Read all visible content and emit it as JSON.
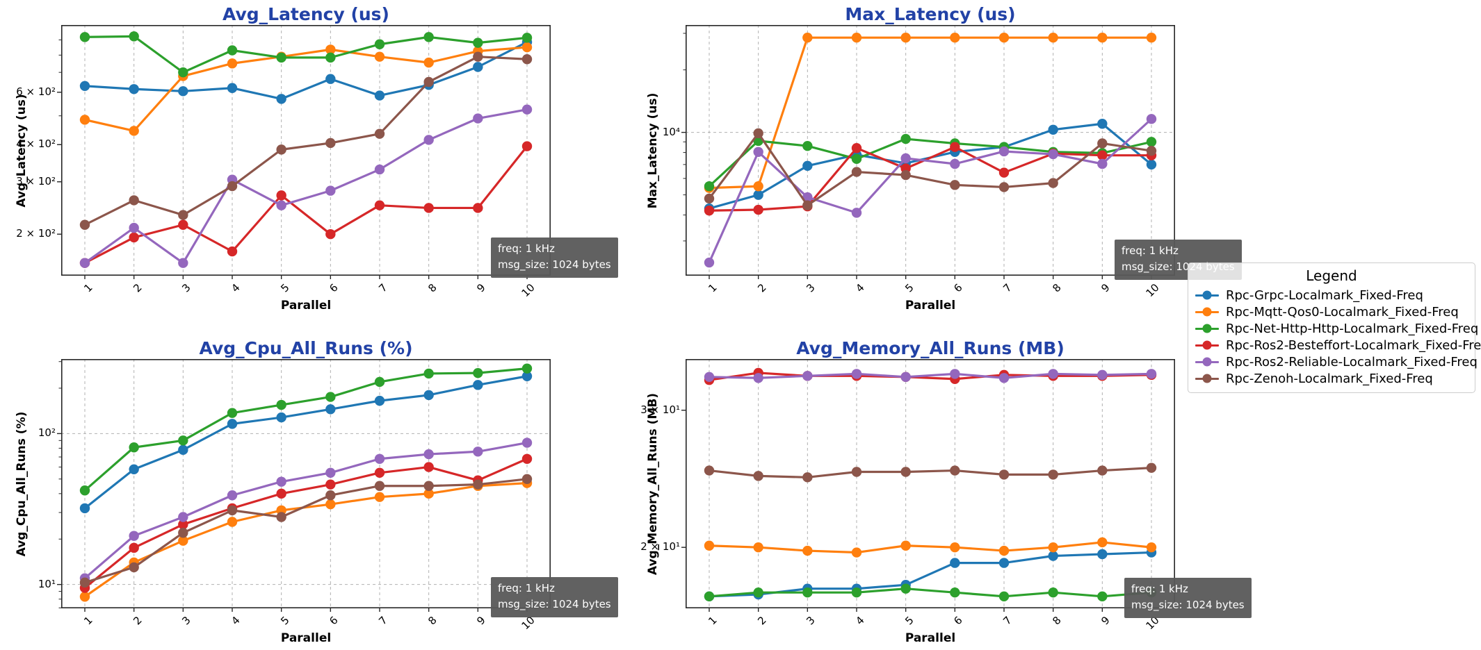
{
  "style": {
    "title_color": "#2242a6",
    "annotation_bg": "#595959",
    "annotation_fg": "#ffffff",
    "grid_color": "#b0b0b0",
    "spine_color": "#262626",
    "background": "#ffffff"
  },
  "annotation": {
    "line1": "freq: 1 kHz",
    "line2": "msg_size: 1024 bytes"
  },
  "legend": {
    "title": "Legend",
    "entries": [
      {
        "label": "Rpc-Grpc-Localmark_Fixed-Freq",
        "color": "#1f77b4"
      },
      {
        "label": "Rpc-Mqtt-Qos0-Localmark_Fixed-Freq",
        "color": "#ff7f0e"
      },
      {
        "label": "Rpc-Net-Http-Http-Localmark_Fixed-Freq",
        "color": "#2ca02c"
      },
      {
        "label": "Rpc-Ros2-Besteffort-Localmark_Fixed-Freq",
        "color": "#d62728"
      },
      {
        "label": "Rpc-Ros2-Reliable-Localmark_Fixed-Freq",
        "color": "#9467bd"
      },
      {
        "label": "Rpc-Zenoh-Localmark_Fixed-Freq",
        "color": "#8c564b"
      }
    ]
  },
  "chart_data": {
    "type": "line",
    "xlabel": "Parallel",
    "x": [
      1,
      2,
      3,
      4,
      5,
      6,
      7,
      8,
      9,
      10
    ],
    "xticklabels": [
      "1",
      "2",
      "3",
      "4",
      "5",
      "6",
      "7",
      "8",
      "9",
      "10"
    ],
    "legend_position": "right",
    "grid": "major-dashed",
    "charts": [
      {
        "title": "Avg_Latency (us)",
        "ylabel": "Avg_Latency (us)",
        "yscale": "log",
        "ylim": [
          145,
          1010
        ],
        "yticks": [
          {
            "value": 600,
            "label": "6 × 10²",
            "grid": false
          },
          {
            "value": 400,
            "label": "4 × 10²",
            "grid": false
          },
          {
            "value": 300,
            "label": "3 × 10²",
            "grid": false
          },
          {
            "value": 200,
            "label": "2 × 10²",
            "grid": false
          }
        ],
        "series": [
          {
            "name": "Rpc-Grpc-Localmark_Fixed-Freq",
            "values": [
              630,
              615,
              605,
              620,
              570,
              665,
              585,
              635,
              730,
              885
            ]
          },
          {
            "name": "Rpc-Mqtt-Qos0-Localmark_Fixed-Freq",
            "values": [
              485,
              445,
              680,
              750,
              790,
              835,
              790,
              755,
              825,
              850
            ]
          },
          {
            "name": "Rpc-Net-Http-Http-Localmark_Fixed-Freq",
            "values": [
              920,
              925,
              700,
              830,
              785,
              785,
              870,
              920,
              880,
              915
            ]
          },
          {
            "name": "Rpc-Ros2-Besteffort-Localmark_Fixed-Freq",
            "values": [
              160,
              195,
              215,
              175,
              270,
              200,
              250,
              245,
              245,
              395
            ]
          },
          {
            "name": "Rpc-Ros2-Reliable-Localmark_Fixed-Freq",
            "values": [
              160,
              210,
              160,
              305,
              250,
              280,
              330,
              415,
              490,
              525
            ]
          },
          {
            "name": "Rpc-Zenoh-Localmark_Fixed-Freq",
            "values": [
              215,
              260,
              232,
              290,
              385,
              405,
              435,
              650,
              790,
              775
            ]
          }
        ]
      },
      {
        "title": "Max_Latency (us)",
        "ylabel": "Max_Latency (us)",
        "yscale": "log",
        "ylim": [
          2040,
          32900
        ],
        "yticks": [
          {
            "value": 10000,
            "label": "10⁴",
            "grid": true
          }
        ],
        "series": [
          {
            "name": "Rpc-Grpc-Localmark_Fixed-Freq",
            "values": [
              4300,
              5000,
              6900,
              7800,
              7100,
              8050,
              8500,
              10300,
              11000,
              7000
            ]
          },
          {
            "name": "Rpc-Mqtt-Qos0-Localmark_Fixed-Freq",
            "values": [
              5400,
              5500,
              28600,
              28600,
              28600,
              28600,
              28600,
              28600,
              28600,
              28600
            ]
          },
          {
            "name": "Rpc-Net-Http-Http-Localmark_Fixed-Freq",
            "values": [
              5500,
              9100,
              8600,
              7450,
              9300,
              8850,
              8500,
              8050,
              7950,
              9000
            ]
          },
          {
            "name": "Rpc-Ros2-Besteffort-Localmark_Fixed-Freq",
            "values": [
              4200,
              4240,
              4400,
              8400,
              6700,
              8500,
              6400,
              7900,
              7750,
              7750
            ]
          },
          {
            "name": "Rpc-Ros2-Reliable-Localmark_Fixed-Freq",
            "values": [
              2360,
              8050,
              4870,
              4100,
              7500,
              7050,
              8100,
              7850,
              7050,
              11600
            ]
          },
          {
            "name": "Rpc-Zenoh-Localmark_Fixed-Freq",
            "values": [
              4800,
              9900,
              4450,
              6450,
              6230,
              5580,
              5450,
              5700,
              8850,
              8150
            ]
          }
        ]
      },
      {
        "title": "Avg_Cpu_All_Runs (%)",
        "ylabel": "Avg_Cpu_All_Runs (%)",
        "yscale": "log",
        "ylim": [
          6.95,
          312
        ],
        "yticks": [
          {
            "value": 100,
            "label": "10²",
            "grid": true
          },
          {
            "value": 10,
            "label": "10¹",
            "grid": true
          }
        ],
        "series": [
          {
            "name": "Rpc-Grpc-Localmark_Fixed-Freq",
            "values": [
              32,
              58,
              78,
              116,
              128,
              145,
              165,
              180,
              210,
              240
            ]
          },
          {
            "name": "Rpc-Mqtt-Qos0-Localmark_Fixed-Freq",
            "values": [
              8.3,
              14,
              19.5,
              26,
              31,
              34,
              38,
              40,
              45,
              47
            ]
          },
          {
            "name": "Rpc-Net-Http-Http-Localmark_Fixed-Freq",
            "values": [
              42,
              81,
              90,
              137,
              155,
              175,
              220,
              250,
              252,
              270
            ]
          },
          {
            "name": "Rpc-Ros2-Besteffort-Localmark_Fixed-Freq",
            "values": [
              9.5,
              17.5,
              25,
              32,
              40,
              46,
              55,
              60,
              49,
              68
            ]
          },
          {
            "name": "Rpc-Ros2-Reliable-Localmark_Fixed-Freq",
            "values": [
              11,
              21,
              28,
              39,
              48,
              55,
              68,
              73,
              76,
              87
            ]
          },
          {
            "name": "Rpc-Zenoh-Localmark_Fixed-Freq",
            "values": [
              10.3,
              13,
              22,
              31,
              28,
              39,
              45,
              45,
              46,
              50
            ]
          }
        ]
      },
      {
        "title": "Avg_Memory_All_Runs (MB)",
        "ylabel": "Avg_Memory_All_Runs (MB)",
        "yscale": "log",
        "ylim": [
          16.7,
          34.9
        ],
        "yticks": [
          {
            "value": 30,
            "label": "3 × 10¹",
            "grid": false
          },
          {
            "value": 20,
            "label": "2 × 10¹",
            "grid": false
          }
        ],
        "series": [
          {
            "name": "Rpc-Grpc-Localmark_Fixed-Freq",
            "values": [
              17.3,
              17.4,
              17.7,
              17.7,
              17.9,
              19.1,
              19.1,
              19.5,
              19.6,
              19.7
            ]
          },
          {
            "name": "Rpc-Mqtt-Qos0-Localmark_Fixed-Freq",
            "values": [
              20.1,
              20.0,
              19.8,
              19.7,
              20.1,
              20.0,
              19.8,
              20.0,
              20.3,
              20.0
            ]
          },
          {
            "name": "Rpc-Net-Http-Http-Localmark_Fixed-Freq",
            "values": [
              17.3,
              17.5,
              17.5,
              17.5,
              17.7,
              17.5,
              17.3,
              17.5,
              17.3,
              17.5
            ]
          },
          {
            "name": "Rpc-Ros2-Besteffort-Localmark_Fixed-Freq",
            "values": [
              32.8,
              33.5,
              33.2,
              33.2,
              33.1,
              32.9,
              33.3,
              33.2,
              33.2,
              33.3
            ]
          },
          {
            "name": "Rpc-Ros2-Reliable-Localmark_Fixed-Freq",
            "values": [
              33.1,
              33.0,
              33.2,
              33.4,
              33.1,
              33.4,
              33.0,
              33.4,
              33.3,
              33.4
            ]
          },
          {
            "name": "Rpc-Zenoh-Localmark_Fixed-Freq",
            "values": [
              25.1,
              24.7,
              24.6,
              25.0,
              25.0,
              25.1,
              24.8,
              24.8,
              25.1,
              25.3
            ]
          }
        ]
      }
    ]
  }
}
